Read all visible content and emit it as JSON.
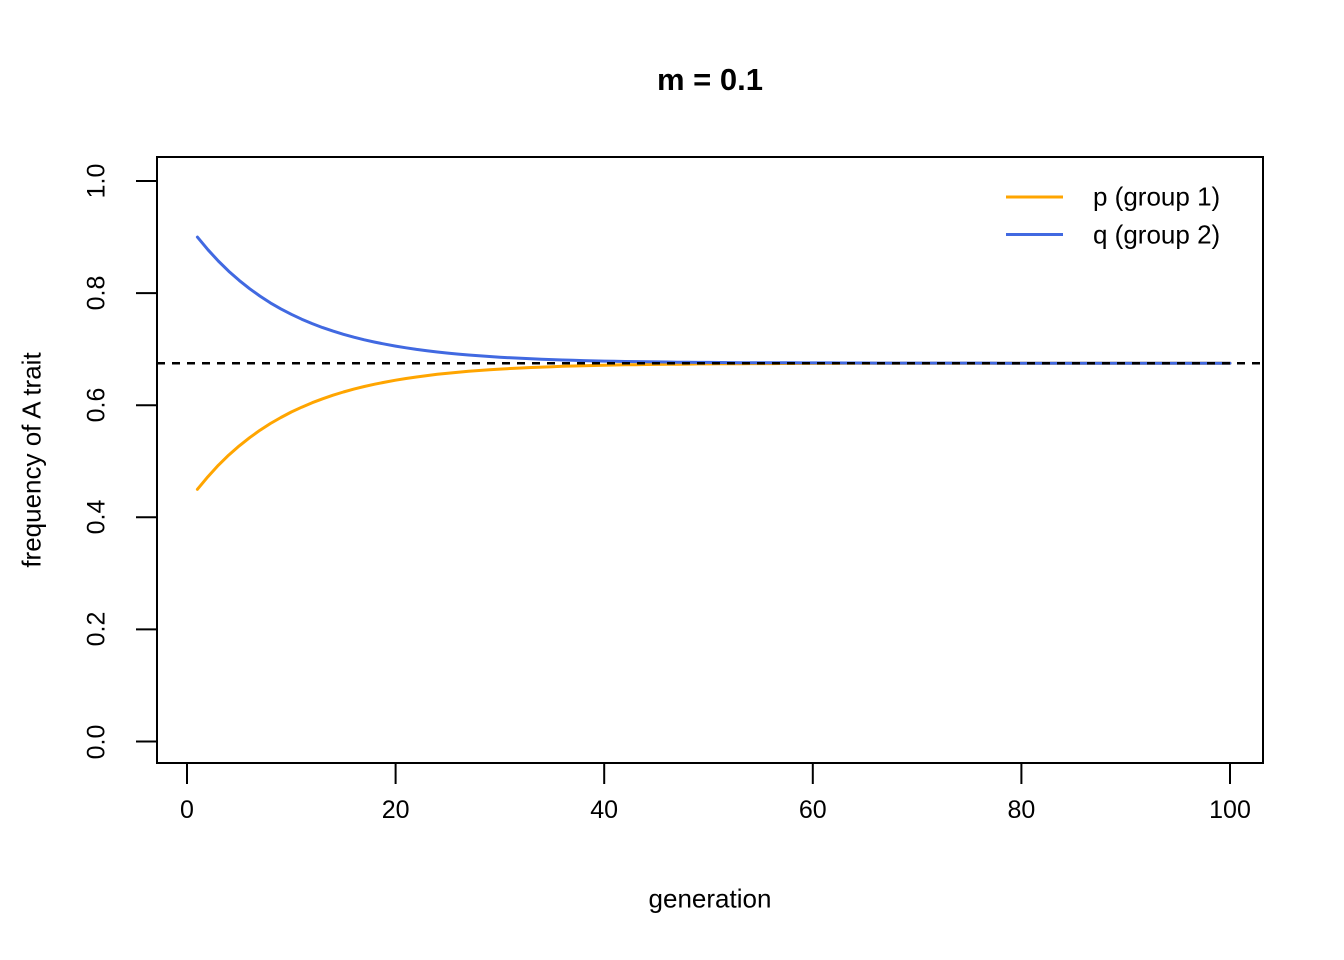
{
  "title": "m = 0.1",
  "colors": {
    "background": "#FFFFFF",
    "axis": "#000000",
    "p_series": "#FFA500",
    "q_series": "#4169E1",
    "equilibrium_line": "#000000"
  },
  "chart_data": {
    "type": "line",
    "title": "m = 0.1",
    "xlabel": "generation",
    "ylabel": "frequency of A trait",
    "xlim": [
      0,
      100
    ],
    "ylim": [
      0.0,
      1.0
    ],
    "grid": false,
    "x_tick_labels": [
      "0",
      "20",
      "40",
      "60",
      "80",
      "100"
    ],
    "y_tick_labels": [
      "1.0",
      "0.8",
      "0.6",
      "0.4",
      "0.2",
      "0.0"
    ],
    "legend": {
      "position": "top-right",
      "box": false,
      "entries": [
        {
          "label": "p (group 1)",
          "color": "#FFA500"
        },
        {
          "label": "q (group 2)",
          "color": "#4169E1"
        }
      ]
    },
    "equilibrium_line": {
      "value": 0.675,
      "style": "dashed",
      "color": "#000000"
    },
    "x": [
      1,
      2,
      3,
      4,
      5,
      6,
      7,
      8,
      9,
      10,
      11,
      12,
      13,
      14,
      15,
      16,
      17,
      18,
      19,
      20,
      21,
      22,
      23,
      24,
      25,
      26,
      27,
      28,
      29,
      30,
      31,
      32,
      33,
      34,
      35,
      36,
      37,
      38,
      39,
      40,
      41,
      42,
      43,
      44,
      45,
      46,
      47,
      48,
      49,
      50,
      51,
      52,
      53,
      54,
      55,
      56,
      57,
      58,
      59,
      60,
      61,
      62,
      63,
      64,
      65,
      66,
      67,
      68,
      69,
      70,
      71,
      72,
      73,
      74,
      75,
      76,
      77,
      78,
      79,
      80,
      81,
      82,
      83,
      84,
      85,
      86,
      87,
      88,
      89,
      90,
      91,
      92,
      93,
      94,
      95,
      96,
      97,
      98,
      99,
      100
    ],
    "series": [
      {
        "id": "p",
        "name": "p (group 1)",
        "color": "#FFA500",
        "start_value": 0.45,
        "values": [
          0.45,
          0.4725,
          0.4928,
          0.511,
          0.5274,
          0.5421,
          0.5554,
          0.5674,
          0.5781,
          0.5878,
          0.5965,
          0.6044,
          0.6115,
          0.6178,
          0.6235,
          0.6287,
          0.6333,
          0.6375,
          0.6412,
          0.6446,
          0.6476,
          0.6504,
          0.6528,
          0.6551,
          0.6571,
          0.6588,
          0.6605,
          0.6619,
          0.6632,
          0.6644,
          0.6655,
          0.6664,
          0.6673,
          0.668,
          0.6687,
          0.6694,
          0.6699,
          0.6704,
          0.6709,
          0.6713,
          0.6717,
          0.672,
          0.6723,
          0.6726,
          0.6728,
          0.673,
          0.6732,
          0.6734,
          0.6736,
          0.6737,
          0.6738,
          0.674,
          0.6741,
          0.6742,
          0.6742,
          0.6743,
          0.6744,
          0.6744,
          0.6745,
          0.6746,
          0.6746,
          0.6746,
          0.6747,
          0.6747,
          0.6747,
          0.6748,
          0.6748,
          0.6748,
          0.6748,
          0.6748,
          0.6749,
          0.6749,
          0.6749,
          0.6749,
          0.6749,
          0.6749,
          0.6749,
          0.675,
          0.675,
          0.675,
          0.675,
          0.675,
          0.675,
          0.675,
          0.675,
          0.675,
          0.675,
          0.675,
          0.675,
          0.675,
          0.675,
          0.675,
          0.675,
          0.675,
          0.675,
          0.675,
          0.675,
          0.675,
          0.675,
          0.675
        ]
      },
      {
        "id": "q",
        "name": "q (group 2)",
        "color": "#4169E1",
        "start_value": 0.9,
        "values": [
          0.9,
          0.8775,
          0.8573,
          0.839,
          0.8226,
          0.8079,
          0.7946,
          0.7826,
          0.7719,
          0.7622,
          0.7535,
          0.7456,
          0.7385,
          0.7322,
          0.7265,
          0.7213,
          0.7167,
          0.7125,
          0.7088,
          0.7054,
          0.7024,
          0.6996,
          0.6972,
          0.6949,
          0.6929,
          0.6912,
          0.6895,
          0.6881,
          0.6868,
          0.6856,
          0.6845,
          0.6836,
          0.6827,
          0.682,
          0.6813,
          0.6806,
          0.6801,
          0.6796,
          0.6791,
          0.6787,
          0.6783,
          0.678,
          0.6777,
          0.6774,
          0.6772,
          0.677,
          0.6768,
          0.6766,
          0.6764,
          0.6763,
          0.6762,
          0.676,
          0.6759,
          0.6758,
          0.6758,
          0.6757,
          0.6756,
          0.6756,
          0.6755,
          0.6754,
          0.6754,
          0.6754,
          0.6753,
          0.6753,
          0.6753,
          0.6752,
          0.6752,
          0.6752,
          0.6752,
          0.6752,
          0.6751,
          0.6751,
          0.6751,
          0.6751,
          0.6751,
          0.6751,
          0.6751,
          0.675,
          0.675,
          0.675,
          0.675,
          0.675,
          0.675,
          0.675,
          0.675,
          0.675,
          0.675,
          0.675,
          0.675,
          0.675,
          0.675,
          0.675,
          0.675,
          0.675,
          0.675,
          0.675,
          0.675,
          0.675,
          0.675,
          0.675
        ]
      }
    ]
  }
}
